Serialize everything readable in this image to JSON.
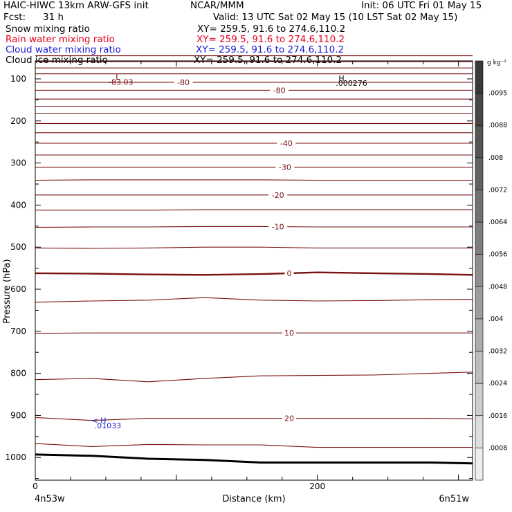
{
  "header": {
    "title": "HAIC-HIWC 13km ARW-GFS init",
    "org": "NCAR/MMM",
    "init": "Init: 06 UTC Fri 01 May 15",
    "fcst_label": "Fcst:",
    "fcst_value": "31 h",
    "valid": "Valid: 13 UTC Sat 02 May 15 (10 LST Sat 02 May 15)",
    "fields": [
      {
        "name": "Snow mixing ratio",
        "xy": "XY= 259.5, 91.6 to 274.6,110.2",
        "color": "#000000"
      },
      {
        "name": "Rain water mixing ratio",
        "xy": "XY= 259.5, 91.6 to 274.6,110.2",
        "color": "#e8001c"
      },
      {
        "name": "Cloud water mixing ratio",
        "xy": "XY= 259.5, 91.6 to 274.6,110.2",
        "color": "#1a1ad0"
      },
      {
        "name": "Cloud ice mixing ratio",
        "xy": "XY= 259.5, 91.6 to 274.6,110.2",
        "color": "#000000"
      }
    ]
  },
  "chart_data": {
    "type": "line",
    "xlabel": "Distance (km)",
    "ylabel": "Pressure (hPa)",
    "xlim": [
      0,
      310
    ],
    "ylim": [
      1050,
      40
    ],
    "x_ticks": [
      0,
      200
    ],
    "y_ticks": [
      100,
      200,
      300,
      400,
      500,
      600,
      700,
      800,
      900,
      1000
    ],
    "x_end_labels": {
      "left": "4n53w",
      "right": "6n51w"
    },
    "temperature_contours": {
      "color": "#7a1010",
      "zero_line_p": [
        562,
        563,
        565,
        566,
        564,
        560,
        562,
        564,
        566
      ],
      "x_nodes": [
        0,
        40,
        80,
        120,
        160,
        200,
        240,
        280,
        310
      ],
      "levels": [
        {
          "p": [
            45,
            45,
            45,
            45,
            45,
            45,
            45,
            45,
            45
          ]
        },
        {
          "p": [
            59,
            59,
            59,
            59,
            59,
            59,
            59,
            59,
            59
          ]
        },
        {
          "p": [
            74,
            74,
            74,
            74,
            74,
            74,
            74,
            74,
            74
          ]
        },
        {
          "p": [
            88,
            88,
            88,
            88,
            88,
            88,
            88,
            88,
            88
          ]
        },
        {
          "p": [
            108,
            108,
            108,
            108,
            108,
            108,
            108,
            108,
            108
          ],
          "label": "-80",
          "label_x": 105
        },
        {
          "p": [
            127,
            127,
            127,
            127,
            127,
            127,
            127,
            127,
            127
          ],
          "label": "-80",
          "label_x": 173
        },
        {
          "p": [
            148,
            148,
            148,
            148,
            148,
            148,
            148,
            148,
            148
          ]
        },
        {
          "p": [
            165,
            165,
            165,
            165,
            165,
            165,
            165,
            165,
            165
          ]
        },
        {
          "p": [
            183,
            183,
            183,
            183,
            183,
            183,
            183,
            183,
            183
          ]
        },
        {
          "p": [
            206,
            206,
            206,
            206,
            206,
            206,
            206,
            206,
            206
          ]
        },
        {
          "p": [
            228,
            228,
            228,
            228,
            228,
            228,
            228,
            228,
            228
          ]
        },
        {
          "p": [
            253,
            253,
            253,
            253,
            253,
            253,
            253,
            253,
            253
          ],
          "label": "-40",
          "label_x": 178
        },
        {
          "p": [
            281,
            281,
            281,
            281,
            281,
            281,
            281,
            281,
            281
          ]
        },
        {
          "p": [
            310,
            310,
            310,
            310,
            310,
            310,
            310,
            310,
            310
          ],
          "label": "-30",
          "label_x": 177
        },
        {
          "p": [
            341,
            340,
            340,
            340,
            340,
            341,
            341,
            341,
            341
          ]
        },
        {
          "p": [
            376,
            376,
            376,
            376,
            376,
            376,
            376,
            376,
            376
          ],
          "label": "-20",
          "label_x": 172
        },
        {
          "p": [
            412,
            412,
            412,
            411,
            411,
            411,
            411,
            411,
            411
          ]
        },
        {
          "p": [
            453,
            452,
            452,
            451,
            451,
            452,
            452,
            452,
            452
          ],
          "label": "-10",
          "label_x": 172
        },
        {
          "p": [
            502,
            503,
            502,
            500,
            500,
            502,
            502,
            502,
            502
          ]
        },
        {
          "p": [
            562,
            563,
            565,
            566,
            564,
            560,
            562,
            564,
            566
          ],
          "label": "0",
          "label_x": 180,
          "thick": true
        },
        {
          "p": [
            631,
            628,
            626,
            620,
            626,
            628,
            627,
            625,
            624
          ]
        },
        {
          "p": [
            705,
            704,
            704,
            704,
            704,
            704,
            704,
            704,
            704
          ],
          "label": "10",
          "label_x": 180
        },
        {
          "p": [
            815,
            812,
            820,
            812,
            806,
            805,
            804,
            800,
            797
          ]
        },
        {
          "p": [
            905,
            912,
            907,
            907,
            907,
            907,
            907,
            907,
            908
          ],
          "label": "20",
          "label_x": 180
        },
        {
          "p": [
            967,
            974,
            969,
            970,
            970,
            976,
            976,
            976,
            976
          ]
        }
      ]
    },
    "terrain_p": [
      993,
      996,
      1003,
      1006,
      1012,
      1012,
      1012,
      1012,
      1014
    ],
    "annotations": [
      {
        "text": "L",
        "x": 57,
        "p": 95,
        "color": "#7a1010"
      },
      {
        "text": "-83.03",
        "x": 52,
        "p": 107,
        "color": "#7a1010"
      },
      {
        "text": "H",
        "x": 215,
        "p": 98,
        "color": "#000000"
      },
      {
        "text": ".000276",
        "x": 213,
        "p": 110,
        "color": "#000000"
      },
      {
        "text": "< H",
        "x": 40,
        "p": 912,
        "color": "#1a1ad0"
      },
      {
        "text": ".01033",
        "x": 42,
        "p": 924,
        "color": "#1a1ad0"
      }
    ],
    "colorbar": {
      "unit": "g kg⁻¹",
      "ticks": [
        ".0095",
        ".0088",
        ".008",
        ".0072",
        ".0064",
        ".0056",
        ".0048",
        ".004",
        ".0032",
        ".0024",
        ".0016",
        ".0008"
      ],
      "colors": [
        "#3a3a3a",
        "#474747",
        "#555555",
        "#626262",
        "#717171",
        "#7f7f7f",
        "#8e8e8e",
        "#9d9d9d",
        "#acacac",
        "#bcbcbc",
        "#cdcdcd",
        "#dedede",
        "#eeeeee"
      ]
    }
  }
}
